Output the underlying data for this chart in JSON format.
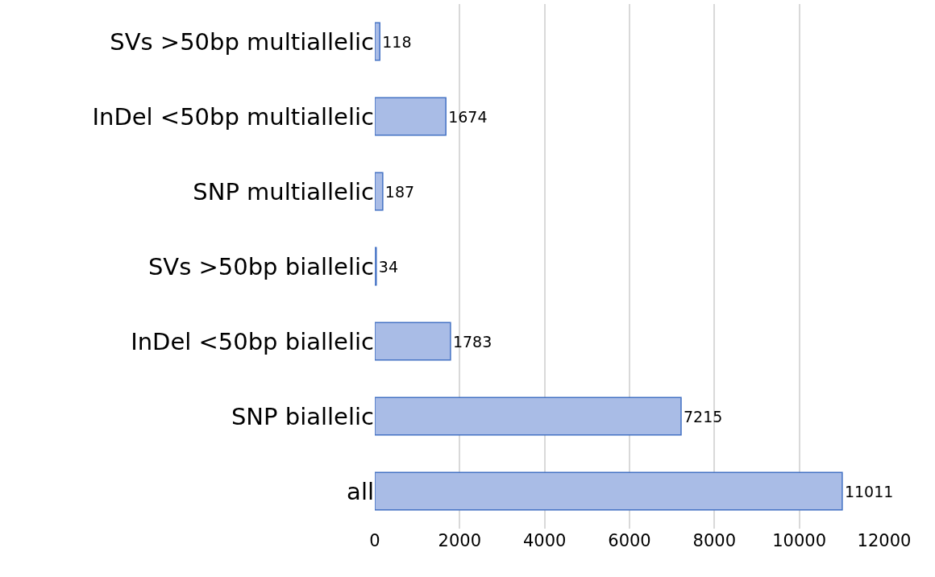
{
  "chart_data": {
    "type": "bar",
    "orientation": "horizontal",
    "categories": [
      "SVs >50bp multiallelic",
      "InDel <50bp multiallelic",
      "SNP multiallelic",
      "SVs >50bp biallelic",
      "InDel <50bp biallelic",
      "SNP biallelic",
      "all"
    ],
    "values": [
      118,
      1674,
      187,
      34,
      1783,
      7215,
      11011
    ],
    "color": "#a9bce6",
    "xlim": [
      0,
      12000
    ],
    "xticks": [
      0,
      2000,
      4000,
      6000,
      8000,
      10000,
      12000
    ],
    "grid": "x",
    "data_labels": true
  }
}
